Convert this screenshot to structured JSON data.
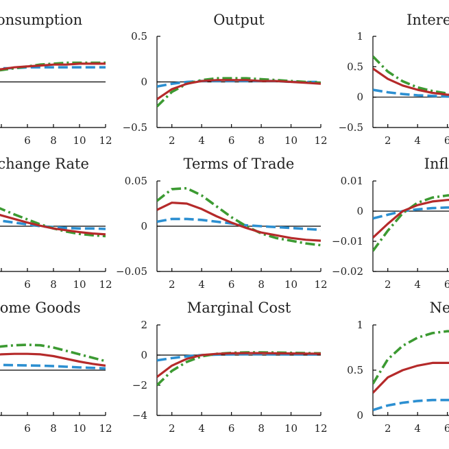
{
  "chart_data": [
    {
      "type": "line",
      "title": "Consumption",
      "xlabel": "",
      "ylabel": "",
      "xlim": [
        1,
        12
      ],
      "ylim": [
        -0.5,
        0.5
      ],
      "x_ticks": [
        2,
        4,
        6,
        8,
        10,
        12
      ],
      "x_tick_labels": [
        "",
        "",
        "6",
        "8",
        "10",
        "12"
      ],
      "y_ticks": [],
      "y_tick_labels": [],
      "x": [
        1,
        2,
        3,
        4,
        5,
        6,
        7,
        8,
        9,
        10,
        11,
        12
      ],
      "series": [
        {
          "name": "baseline",
          "style": "solid",
          "values": [
            0.08,
            0.1,
            0.12,
            0.14,
            0.16,
            0.17,
            0.18,
            0.19,
            0.19,
            0.2,
            0.2,
            0.2
          ]
        },
        {
          "name": "dash",
          "style": "dash",
          "values": [
            0.12,
            0.13,
            0.14,
            0.15,
            0.15,
            0.16,
            0.16,
            0.16,
            0.16,
            0.16,
            0.16,
            0.16
          ]
        },
        {
          "name": "dashdot",
          "style": "dashdot",
          "values": [
            0.05,
            0.08,
            0.11,
            0.13,
            0.15,
            0.17,
            0.19,
            0.2,
            0.21,
            0.21,
            0.21,
            0.21
          ]
        }
      ]
    },
    {
      "type": "line",
      "title": "Output",
      "xlabel": "",
      "ylabel": "",
      "xlim": [
        1,
        12
      ],
      "ylim": [
        -0.5,
        0.5
      ],
      "x_ticks": [
        2,
        4,
        6,
        8,
        10,
        12
      ],
      "x_tick_labels": [
        "2",
        "4",
        "6",
        "8",
        "10",
        "12"
      ],
      "y_ticks": [
        -0.5,
        0,
        0.5
      ],
      "y_tick_labels": [
        "−0.5",
        "0",
        "0.5"
      ],
      "x": [
        1,
        2,
        3,
        4,
        5,
        6,
        7,
        8,
        9,
        10,
        11,
        12
      ],
      "series": [
        {
          "name": "baseline",
          "style": "solid",
          "values": [
            -0.19,
            -0.08,
            -0.02,
            0.01,
            0.02,
            0.02,
            0.02,
            0.01,
            0.01,
            0.0,
            -0.01,
            -0.02
          ]
        },
        {
          "name": "dash",
          "style": "dash",
          "values": [
            -0.05,
            -0.02,
            0.0,
            0.01,
            0.01,
            0.01,
            0.01,
            0.01,
            0.01,
            0.0,
            0.0,
            0.0
          ]
        },
        {
          "name": "dashdot",
          "style": "dashdot",
          "values": [
            -0.27,
            -0.11,
            -0.02,
            0.02,
            0.04,
            0.04,
            0.04,
            0.03,
            0.02,
            0.01,
            0.0,
            -0.01
          ]
        }
      ]
    },
    {
      "type": "line",
      "title": "Interest Rate",
      "xlabel": "",
      "ylabel": "",
      "xlim": [
        1,
        12
      ],
      "ylim": [
        -0.5,
        1
      ],
      "x_ticks": [
        2,
        4,
        6,
        8,
        10,
        12
      ],
      "x_tick_labels": [
        "2",
        "4",
        "6",
        "",
        "",
        ""
      ],
      "y_ticks": [
        -0.5,
        0,
        0.5,
        1
      ],
      "y_tick_labels": [
        "−0.5",
        "0",
        "0.5",
        "1"
      ],
      "x": [
        1,
        2,
        3,
        4,
        5,
        6,
        7,
        8,
        9,
        10,
        11,
        12
      ],
      "series": [
        {
          "name": "baseline",
          "style": "solid",
          "values": [
            0.47,
            0.3,
            0.19,
            0.12,
            0.07,
            0.04,
            0.02,
            0.01,
            0.0,
            0.0,
            0.0,
            0.0
          ]
        },
        {
          "name": "dash",
          "style": "dash",
          "values": [
            0.12,
            0.08,
            0.05,
            0.03,
            0.02,
            0.01,
            0.01,
            0.0,
            0.0,
            0.0,
            0.0,
            0.0
          ]
        },
        {
          "name": "dashdot",
          "style": "dashdot",
          "values": [
            0.67,
            0.42,
            0.26,
            0.16,
            0.1,
            0.06,
            0.04,
            0.02,
            0.01,
            0.0,
            0.0,
            0.0
          ]
        }
      ]
    },
    {
      "type": "line",
      "title": "Exchange Rate",
      "xlabel": "",
      "ylabel": "",
      "xlim": [
        1,
        12
      ],
      "ylim": [
        -1,
        1
      ],
      "x_ticks": [
        2,
        4,
        6,
        8,
        10,
        12
      ],
      "x_tick_labels": [
        "",
        "",
        "6",
        "8",
        "10",
        "12"
      ],
      "y_ticks": [],
      "y_tick_labels": [],
      "x": [
        1,
        2,
        3,
        4,
        5,
        6,
        7,
        8,
        9,
        10,
        11,
        12
      ],
      "series": [
        {
          "name": "baseline",
          "style": "solid",
          "values": [
            0.5,
            0.43,
            0.33,
            0.24,
            0.16,
            0.08,
            0.01,
            -0.05,
            -0.09,
            -0.13,
            -0.16,
            -0.18
          ]
        },
        {
          "name": "dash",
          "style": "dash",
          "values": [
            0.23,
            0.2,
            0.16,
            0.12,
            0.08,
            0.04,
            0.0,
            -0.02,
            -0.04,
            -0.05,
            -0.05,
            -0.06
          ]
        },
        {
          "name": "dashdot",
          "style": "dashdot",
          "values": [
            0.75,
            0.62,
            0.5,
            0.38,
            0.26,
            0.15,
            0.04,
            -0.05,
            -0.12,
            -0.17,
            -0.2,
            -0.22
          ]
        }
      ]
    },
    {
      "type": "line",
      "title": "Terms of Trade",
      "xlabel": "",
      "ylabel": "",
      "xlim": [
        1,
        12
      ],
      "ylim": [
        -0.05,
        0.05
      ],
      "x_ticks": [
        2,
        4,
        6,
        8,
        10,
        12
      ],
      "x_tick_labels": [
        "2",
        "4",
        "6",
        "8",
        "10",
        "12"
      ],
      "y_ticks": [
        -0.05,
        0,
        0.05
      ],
      "y_tick_labels": [
        "−0.05",
        "0",
        "0.05"
      ],
      "x": [
        1,
        2,
        3,
        4,
        5,
        6,
        7,
        8,
        9,
        10,
        11,
        12
      ],
      "series": [
        {
          "name": "baseline",
          "style": "solid",
          "values": [
            0.018,
            0.026,
            0.025,
            0.019,
            0.011,
            0.004,
            -0.002,
            -0.007,
            -0.01,
            -0.013,
            -0.015,
            -0.016
          ]
        },
        {
          "name": "dash",
          "style": "dash",
          "values": [
            0.005,
            0.008,
            0.008,
            0.007,
            0.005,
            0.003,
            0.001,
            0.0,
            -0.001,
            -0.002,
            -0.003,
            -0.004
          ]
        },
        {
          "name": "dashdot",
          "style": "dashdot",
          "values": [
            0.028,
            0.041,
            0.042,
            0.034,
            0.022,
            0.01,
            0.0,
            -0.008,
            -0.013,
            -0.016,
            -0.019,
            -0.021
          ]
        }
      ]
    },
    {
      "type": "line",
      "title": "Inflation",
      "xlabel": "",
      "ylabel": "",
      "xlim": [
        1,
        12
      ],
      "ylim": [
        -0.02,
        0.01
      ],
      "x_ticks": [
        2,
        4,
        6,
        8,
        10,
        12
      ],
      "x_tick_labels": [
        "2",
        "4",
        "6",
        "",
        "",
        ""
      ],
      "y_ticks": [
        -0.02,
        -0.01,
        0,
        0.01
      ],
      "y_tick_labels": [
        "−0.02",
        "−0.01",
        "0",
        "0.01"
      ],
      "x": [
        1,
        2,
        3,
        4,
        5,
        6,
        7,
        8,
        9,
        10,
        11,
        12
      ],
      "series": [
        {
          "name": "baseline",
          "style": "solid",
          "values": [
            -0.0088,
            -0.0042,
            0.0,
            0.002,
            0.0032,
            0.0037,
            0.0038,
            0.0036,
            0.0033,
            0.003,
            0.0027,
            0.0024
          ]
        },
        {
          "name": "dash",
          "style": "dash",
          "values": [
            -0.0024,
            -0.0012,
            0.0,
            0.0006,
            0.001,
            0.0012,
            0.0013,
            0.0013,
            0.0012,
            0.0011,
            0.001,
            0.0009
          ]
        },
        {
          "name": "dashdot",
          "style": "dashdot",
          "values": [
            -0.0132,
            -0.0065,
            -0.0007,
            0.0028,
            0.0045,
            0.0052,
            0.0054,
            0.0052,
            0.0048,
            0.0043,
            0.0038,
            0.0034
          ]
        }
      ]
    },
    {
      "type": "line",
      "title": "Home Goods",
      "xlabel": "",
      "ylabel": "",
      "xlim": [
        1,
        12
      ],
      "ylim": [
        -2,
        2
      ],
      "x_ticks": [
        2,
        4,
        6,
        8,
        10,
        12
      ],
      "x_tick_labels": [
        "",
        "",
        "6",
        "8",
        "10",
        "12"
      ],
      "y_ticks": [],
      "y_tick_labels": [],
      "x": [
        1,
        2,
        3,
        4,
        5,
        6,
        7,
        8,
        9,
        10,
        11,
        12
      ],
      "series": [
        {
          "name": "baseline",
          "style": "solid",
          "values": [
            0.4,
            0.55,
            0.65,
            0.7,
            0.72,
            0.72,
            0.7,
            0.62,
            0.5,
            0.38,
            0.28,
            0.2
          ]
        },
        {
          "name": "dash",
          "style": "dash",
          "values": [
            0.2,
            0.22,
            0.23,
            0.23,
            0.22,
            0.21,
            0.2,
            0.18,
            0.15,
            0.12,
            0.1,
            0.08
          ]
        },
        {
          "name": "dashdot",
          "style": "dashdot",
          "values": [
            0.6,
            0.8,
            0.95,
            1.05,
            1.1,
            1.12,
            1.1,
            1.0,
            0.85,
            0.7,
            0.55,
            0.4
          ]
        }
      ]
    },
    {
      "type": "line",
      "title": "Marginal Cost",
      "xlabel": "",
      "ylabel": "",
      "xlim": [
        1,
        12
      ],
      "ylim": [
        -4,
        2
      ],
      "x_ticks": [
        2,
        4,
        6,
        8,
        10,
        12
      ],
      "x_tick_labels": [
        "2",
        "4",
        "6",
        "8",
        "10",
        "12"
      ],
      "y_ticks": [
        -4,
        -2,
        0,
        2
      ],
      "y_tick_labels": [
        "−4",
        "−2",
        "0",
        "2"
      ],
      "x": [
        1,
        2,
        3,
        4,
        5,
        6,
        7,
        8,
        9,
        10,
        11,
        12
      ],
      "series": [
        {
          "name": "baseline",
          "style": "solid",
          "values": [
            -1.45,
            -0.7,
            -0.25,
            0.0,
            0.08,
            0.12,
            0.13,
            0.13,
            0.12,
            0.11,
            0.1,
            0.09
          ]
        },
        {
          "name": "dash",
          "style": "dash",
          "values": [
            -0.35,
            -0.2,
            -0.08,
            0.0,
            0.03,
            0.05,
            0.06,
            0.06,
            0.05,
            0.05,
            0.04,
            0.04
          ]
        },
        {
          "name": "dashdot",
          "style": "dashdot",
          "values": [
            -2.0,
            -1.05,
            -0.45,
            -0.08,
            0.08,
            0.15,
            0.18,
            0.18,
            0.17,
            0.15,
            0.13,
            0.12
          ]
        }
      ]
    },
    {
      "type": "line",
      "title": "Net FA",
      "xlabel": "",
      "ylabel": "",
      "xlim": [
        1,
        12
      ],
      "ylim": [
        0,
        1
      ],
      "x_ticks": [
        2,
        4,
        6,
        8,
        10,
        12
      ],
      "x_tick_labels": [
        "2",
        "4",
        "6",
        "",
        "",
        ""
      ],
      "y_ticks": [
        0,
        0.5,
        1
      ],
      "y_tick_labels": [
        "0",
        "0.5",
        "1"
      ],
      "x": [
        1,
        2,
        3,
        4,
        5,
        6,
        7,
        8,
        9,
        10,
        11,
        12
      ],
      "series": [
        {
          "name": "baseline",
          "style": "solid",
          "values": [
            0.25,
            0.42,
            0.5,
            0.55,
            0.58,
            0.58,
            0.58,
            0.58,
            0.58,
            0.58,
            0.58,
            0.58
          ]
        },
        {
          "name": "dash",
          "style": "dash",
          "values": [
            0.06,
            0.11,
            0.14,
            0.16,
            0.17,
            0.17,
            0.17,
            0.17,
            0.17,
            0.17,
            0.17,
            0.17
          ]
        },
        {
          "name": "dashdot",
          "style": "dashdot",
          "values": [
            0.35,
            0.62,
            0.77,
            0.86,
            0.91,
            0.93,
            0.93,
            0.93,
            0.93,
            0.93,
            0.93,
            0.93
          ]
        }
      ]
    }
  ],
  "colors": {
    "baseline": "#b52a2a",
    "dash": "#2c8fd1",
    "dashdot": "#3c9a32",
    "axis": "#000000",
    "text": "#222222"
  }
}
